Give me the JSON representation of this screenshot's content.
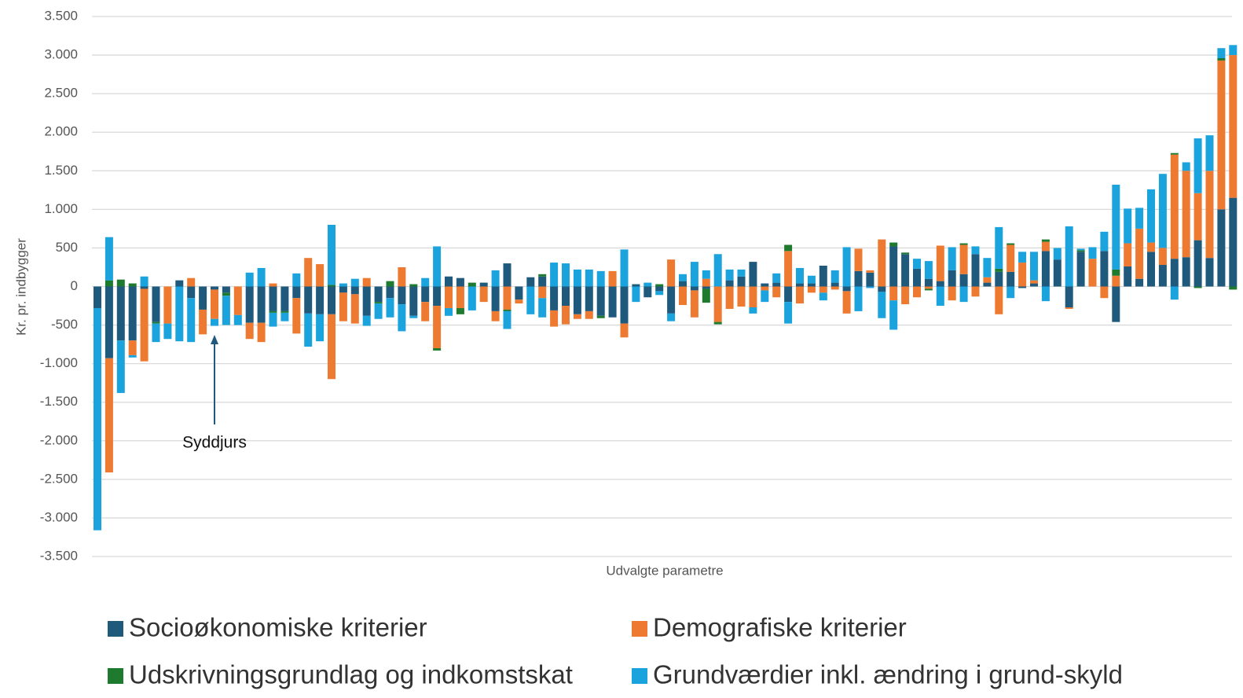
{
  "chart_data": {
    "type": "bar",
    "stacked": true,
    "ylabel": "Kr. pr. indbygger",
    "xlabel": "Udvalgte parametre",
    "annotation": "Syddjurs",
    "grid": true,
    "ylim": [
      -3500,
      3500
    ],
    "yticks": [
      {
        "value": -3500,
        "label": "-3.500"
      },
      {
        "value": -3000,
        "label": "-3.000"
      },
      {
        "value": -2500,
        "label": "-2.500"
      },
      {
        "value": -2000,
        "label": "-2.000"
      },
      {
        "value": -1500,
        "label": "-1.500"
      },
      {
        "value": -1000,
        "label": "-1.000"
      },
      -500,
      0,
      500,
      {
        "value": 1000,
        "label": "1.000"
      },
      {
        "value": 1500,
        "label": "1.500"
      },
      {
        "value": 2000,
        "label": "2.000"
      },
      {
        "value": 2500,
        "label": "2.500"
      },
      {
        "value": 3000,
        "label": "3.000"
      },
      {
        "value": 3500,
        "label": "3.500"
      }
    ],
    "categories": [
      null,
      null,
      null,
      null,
      null,
      null,
      null,
      null,
      null,
      null,
      null,
      null,
      null,
      null,
      null,
      null,
      null,
      null,
      null,
      null,
      null,
      null,
      null,
      null,
      null,
      null,
      null,
      null,
      null,
      null,
      null,
      null,
      null,
      null,
      null,
      null,
      null,
      null,
      null,
      null,
      null,
      null,
      null,
      null,
      null,
      null,
      null,
      null,
      null,
      null,
      null,
      null,
      null,
      null,
      null,
      null,
      null,
      null,
      null,
      null,
      null,
      null,
      null,
      null,
      null,
      null,
      null,
      null,
      null,
      null,
      null,
      null,
      null,
      null,
      null,
      null,
      null,
      null,
      null,
      null,
      null,
      null,
      null,
      null,
      null,
      null,
      null,
      null,
      null,
      null,
      null,
      null,
      null,
      null,
      null,
      null,
      null,
      null
    ],
    "series": [
      {
        "name": "Socioøkonomiske kriterier",
        "color": "#1f5a7d",
        "values": [
          -280,
          -930,
          -700,
          -700,
          -30,
          -460,
          0,
          80,
          -150,
          -300,
          -40,
          -80,
          0,
          -470,
          -470,
          -320,
          -320,
          -150,
          -350,
          -360,
          -360,
          -80,
          -100,
          -380,
          -200,
          -150,
          -230,
          -380,
          -200,
          -250,
          130,
          110,
          0,
          50,
          -320,
          300,
          -170,
          120,
          130,
          -310,
          -250,
          -360,
          -320,
          -380,
          -400,
          -480,
          30,
          -140,
          -60,
          -350,
          70,
          -50,
          -30,
          0,
          80,
          130,
          320,
          40,
          50,
          -200,
          40,
          40,
          270,
          50,
          -60,
          200,
          180,
          -70,
          520,
          420,
          230,
          100,
          70,
          210,
          160,
          420,
          50,
          190,
          190,
          -20,
          40,
          460,
          350,
          -270,
          450,
          0,
          460,
          -460,
          260,
          100,
          450,
          280,
          360,
          380,
          600,
          370,
          1000,
          1150
        ]
      },
      {
        "name": "Demografiske  kriterier",
        "color": "#ee7a32",
        "values": [
          0,
          -1480,
          0,
          -190,
          -940,
          0,
          -480,
          0,
          110,
          -320,
          -380,
          0,
          -370,
          -210,
          -250,
          40,
          0,
          -460,
          370,
          290,
          -840,
          -370,
          -380,
          110,
          0,
          0,
          250,
          0,
          -250,
          -550,
          -280,
          -280,
          0,
          -200,
          -130,
          -300,
          -50,
          0,
          -150,
          -210,
          -240,
          -60,
          -100,
          0,
          200,
          -180,
          0,
          0,
          0,
          350,
          -240,
          -350,
          100,
          -460,
          -290,
          -260,
          -270,
          -50,
          -140,
          460,
          -220,
          -80,
          -80,
          -40,
          -290,
          290,
          30,
          610,
          -180,
          -230,
          -140,
          -30,
          460,
          -180,
          380,
          -130,
          70,
          -360,
          350,
          310,
          40,
          120,
          0,
          -20,
          0,
          360,
          -150,
          140,
          300,
          650,
          120,
          220,
          1350,
          1120,
          610,
          1130,
          1930,
          1850
        ]
      },
      {
        "name": "Udskrivningsgrundlag og indkomstskat",
        "color": "#1e7a2e",
        "values": [
          0,
          80,
          90,
          40,
          0,
          -20,
          0,
          0,
          0,
          0,
          0,
          -40,
          0,
          0,
          0,
          -20,
          -20,
          0,
          0,
          0,
          20,
          0,
          0,
          0,
          -20,
          70,
          0,
          30,
          0,
          -30,
          0,
          -80,
          50,
          0,
          0,
          -20,
          0,
          0,
          30,
          0,
          0,
          0,
          0,
          -30,
          0,
          0,
          0,
          0,
          30,
          0,
          0,
          0,
          -180,
          -30,
          0,
          0,
          0,
          0,
          0,
          80,
          0,
          0,
          0,
          0,
          0,
          0,
          0,
          0,
          50,
          20,
          0,
          -20,
          0,
          0,
          20,
          0,
          0,
          40,
          20,
          0,
          0,
          30,
          0,
          0,
          20,
          0,
          0,
          80,
          0,
          0,
          0,
          0,
          20,
          0,
          -20,
          0,
          30,
          -40
        ]
      },
      {
        "name": "Grundværdier  inkl. ændring i grund-skyld",
        "color": "#1aa3dc",
        "values": [
          -2880,
          560,
          -680,
          -30,
          130,
          -240,
          -200,
          -710,
          -570,
          0,
          -90,
          -380,
          -130,
          180,
          240,
          -180,
          -110,
          170,
          -430,
          -350,
          780,
          40,
          100,
          -130,
          -200,
          -250,
          -350,
          -30,
          110,
          520,
          -100,
          0,
          -310,
          0,
          210,
          -230,
          0,
          -360,
          -250,
          310,
          300,
          220,
          220,
          200,
          0,
          480,
          -200,
          50,
          -50,
          -100,
          90,
          320,
          110,
          420,
          140,
          90,
          -80,
          -150,
          120,
          -280,
          200,
          100,
          -100,
          160,
          510,
          -320,
          -20,
          -340,
          -380,
          0,
          130,
          230,
          -250,
          300,
          -200,
          100,
          250,
          540,
          -150,
          140,
          370,
          -190,
          150,
          780,
          20,
          150,
          250,
          1100,
          450,
          270,
          690,
          960,
          -170,
          110,
          710,
          460,
          130,
          130
        ]
      }
    ]
  }
}
